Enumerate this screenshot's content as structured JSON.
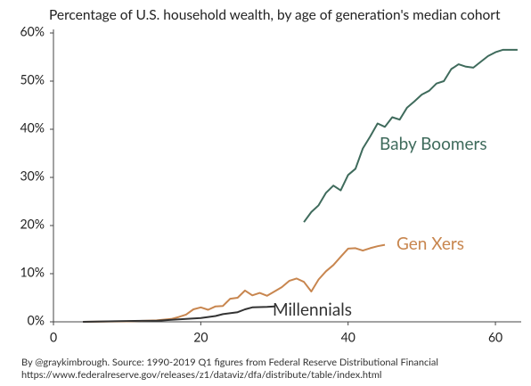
{
  "chart_data": {
    "type": "line",
    "title": "Percentage of U.S. household wealth, by age of generation's median cohort",
    "source": [
      "By @graykimbrough. Source: 1990-2019 Q1 figures from Federal Reserve Distributional Financial",
      "https://www.federalreserve.gov/releases/z1/dataviz/dfa/distribute/table/index.html"
    ],
    "xlim": [
      0,
      63.5
    ],
    "xticks": [
      0,
      20,
      40,
      60
    ],
    "ylim": [
      0,
      60
    ],
    "yticks": [
      {
        "value": 0,
        "label": "0%"
      },
      {
        "value": 10,
        "label": "10%"
      },
      {
        "value": 20,
        "label": "20%"
      },
      {
        "value": 30,
        "label": "30%"
      },
      {
        "value": 40,
        "label": "40%"
      },
      {
        "value": 50,
        "label": "50%"
      },
      {
        "value": 60,
        "label": "60%"
      }
    ],
    "grid": false,
    "series": [
      {
        "name": "Baby Boomers",
        "color": "#3f6b5c",
        "x": [
          34,
          35,
          36,
          37,
          38,
          39,
          40,
          41,
          42,
          43,
          44,
          45,
          46,
          47,
          48,
          49,
          50,
          51,
          52,
          53,
          54,
          55,
          56,
          57,
          58,
          59,
          60,
          61,
          62,
          63
        ],
        "values": [
          20.7,
          22.8,
          24.2,
          26.8,
          28.3,
          27.3,
          30.5,
          31.8,
          36,
          38.5,
          41.2,
          40.5,
          42.5,
          42,
          44.5,
          45.8,
          47.2,
          48,
          49.5,
          50,
          52.5,
          53.5,
          53,
          52.8,
          54,
          55.2,
          56,
          56.5,
          56.5,
          56.5
        ]
      },
      {
        "name": "Gen Xers",
        "color": "#c8864f",
        "x": [
          4,
          10,
          14,
          16,
          17,
          18,
          19,
          20,
          21,
          22,
          23,
          24,
          25,
          26,
          27,
          28,
          29,
          30,
          31,
          32,
          33,
          34,
          35,
          36,
          37,
          38,
          39,
          40,
          41,
          42,
          43,
          44,
          45
        ],
        "values": [
          0,
          0.1,
          0.3,
          0.6,
          1,
          1.5,
          2.6,
          3,
          2.5,
          3.2,
          3.3,
          4.8,
          5,
          6.5,
          5.5,
          6,
          5.4,
          6.3,
          7.2,
          8.5,
          9,
          8.3,
          6.3,
          8.8,
          10.5,
          11.8,
          13.5,
          15.2,
          15.3,
          14.8,
          15.3,
          15.7,
          16
        ]
      },
      {
        "name": "Millennials",
        "color": "#333333",
        "x": [
          4,
          12,
          14,
          16,
          18,
          20,
          22,
          23,
          25,
          26,
          27,
          29,
          30
        ],
        "values": [
          0,
          0.2,
          0.2,
          0.4,
          0.6,
          0.8,
          1.2,
          1.6,
          2,
          2.6,
          3,
          3.1,
          3.2
        ]
      }
    ]
  }
}
